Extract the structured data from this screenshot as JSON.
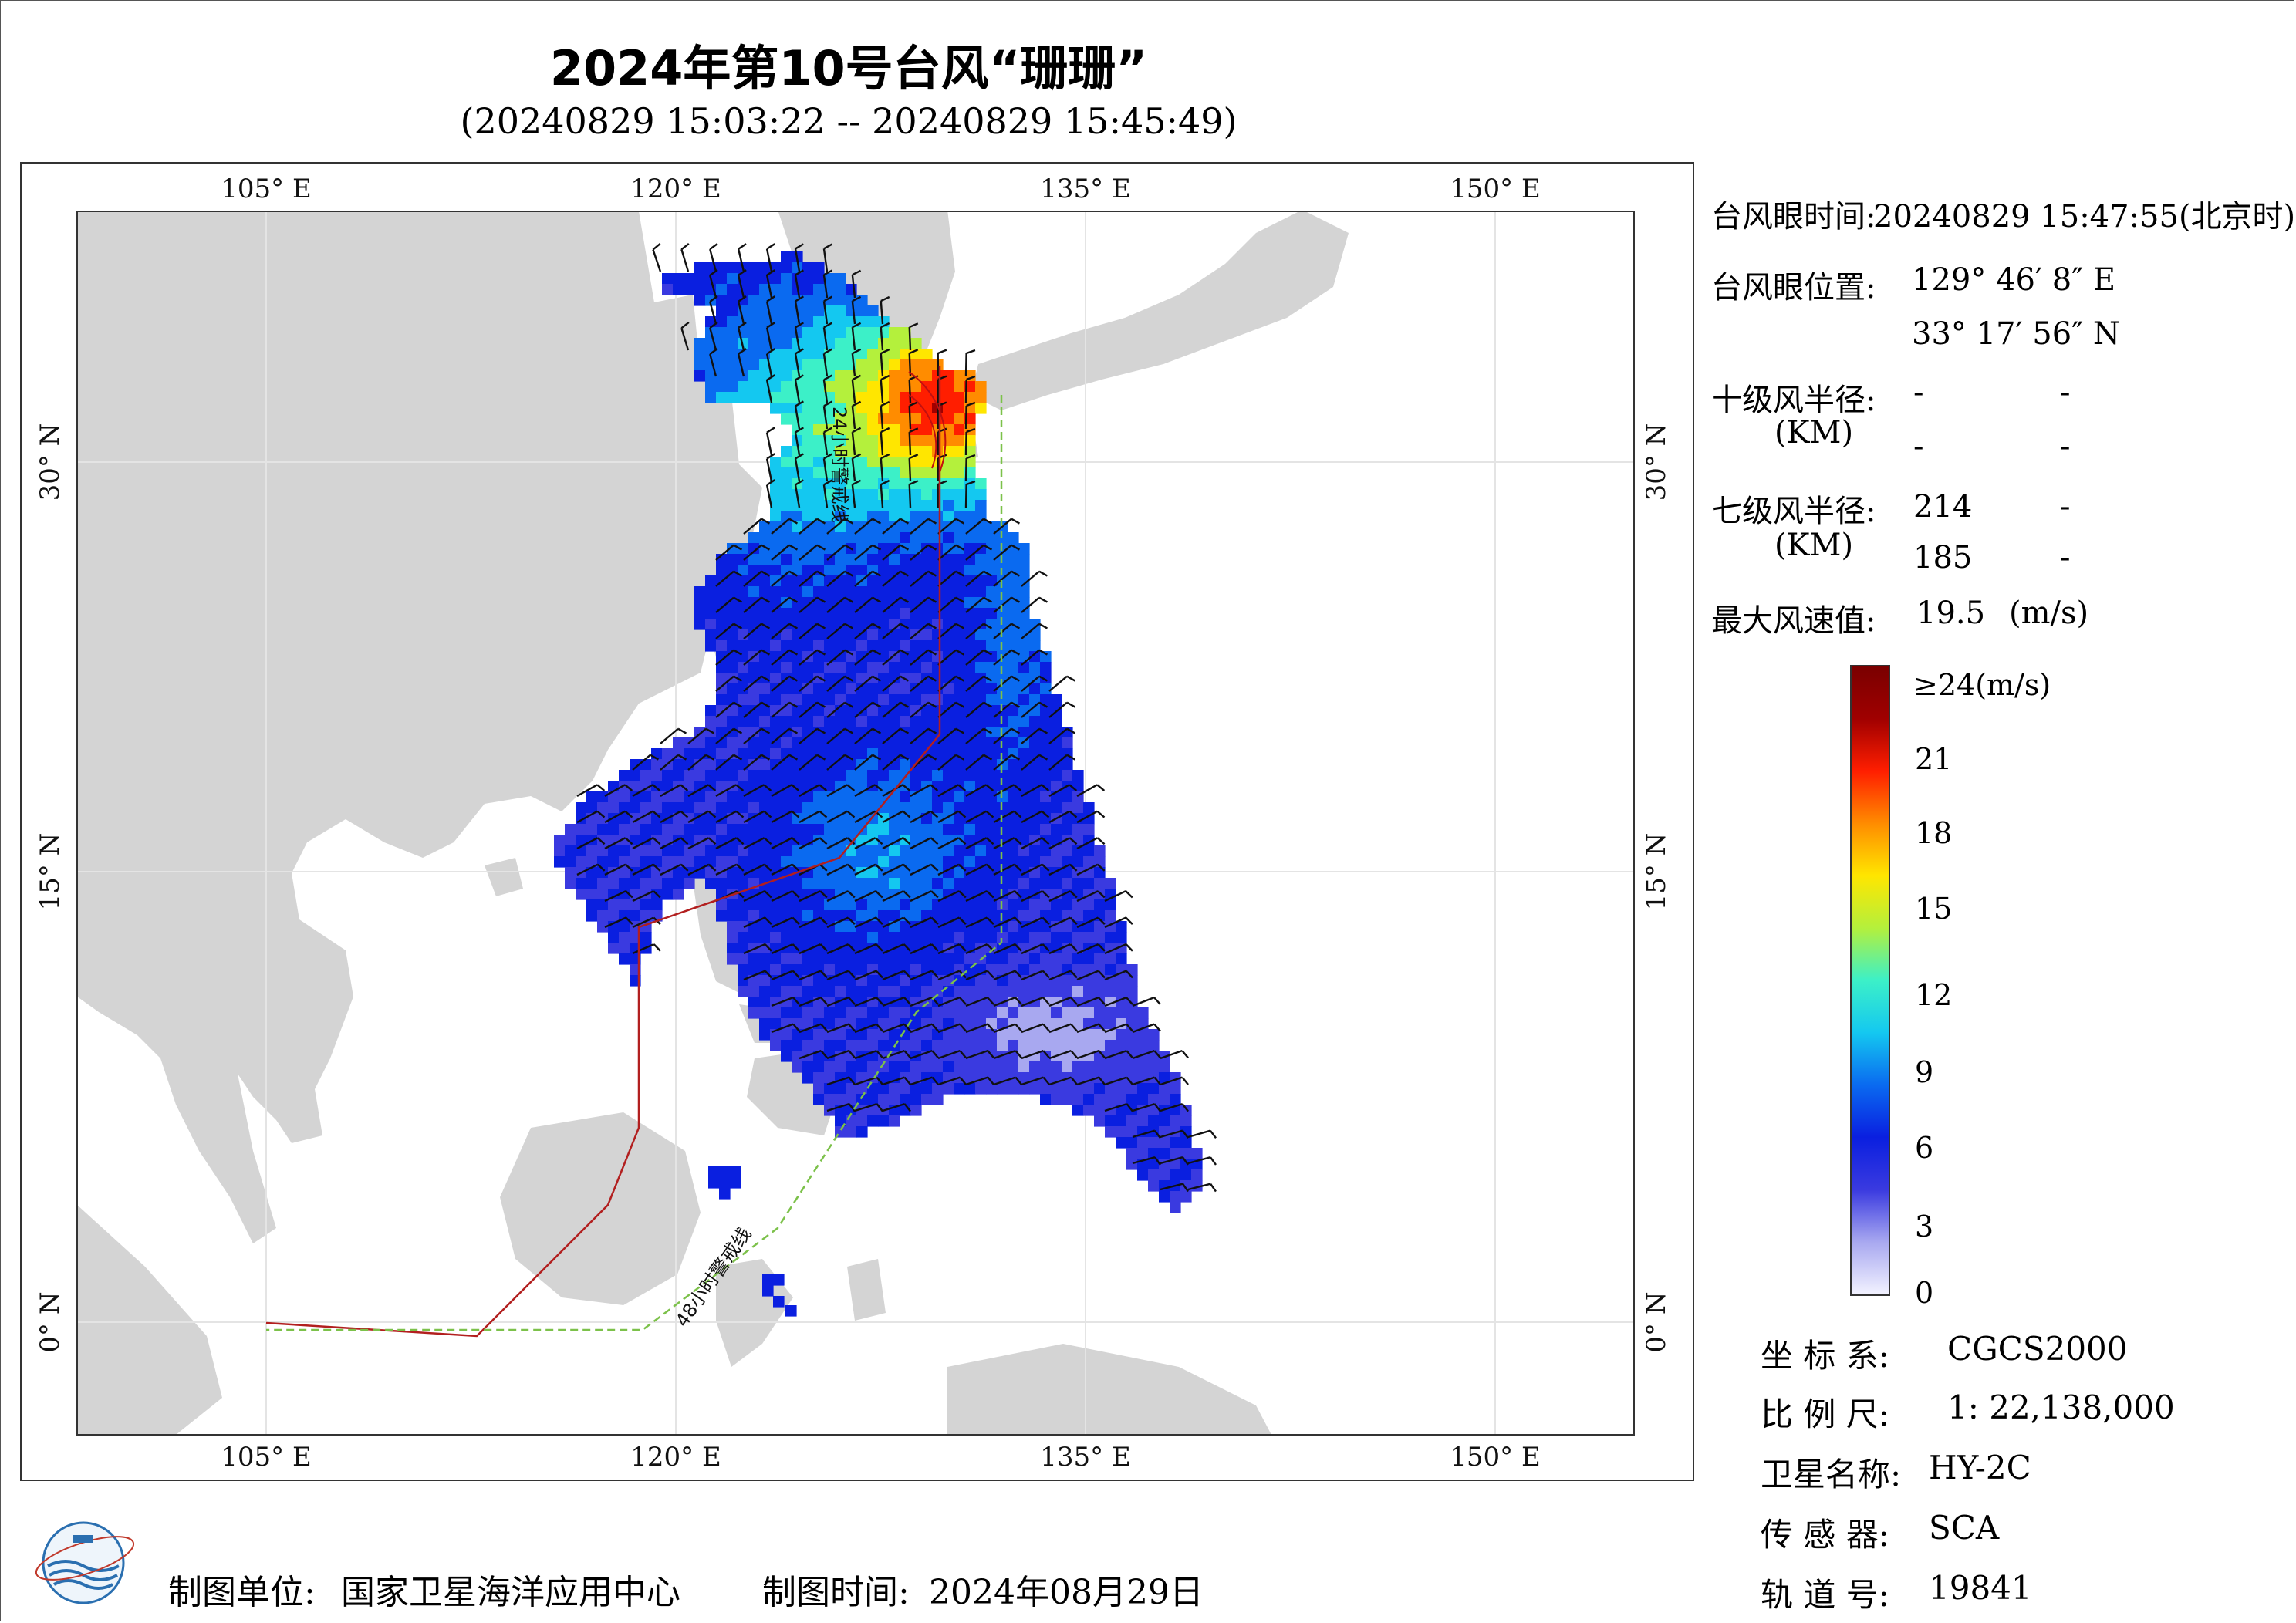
{
  "title": "2024年第10号台风“珊珊”",
  "subtitle": "(20240829 15:03:22 -- 20240829 15:45:49)",
  "map": {
    "lon_ticks": [
      "105° E",
      "120° E",
      "135° E",
      "150° E"
    ],
    "lat_ticks": [
      "0° N",
      "15° N",
      "30° N"
    ],
    "line_labels": {
      "line24": "24小时警戒线",
      "line48": "48小时警戒线"
    },
    "colors": {
      "land": "#d4d4d4",
      "sea": "#ffffff",
      "line24": "#b21f1f",
      "line48": "#7cc14a",
      "barb": "#111111"
    }
  },
  "info": {
    "eye_time_label": "台风眼时间:",
    "eye_time_value": "20240829 15:47:55(北京时)",
    "eye_pos_label": "台风眼位置:",
    "eye_lon": "129° 46′ 8″ E",
    "eye_lat": "33° 17′ 56″ N",
    "r10_label": "十级风半径:",
    "r10_unit": "(KM)",
    "r10_v1": "-",
    "r10_v2": "-",
    "r10_v3": "-",
    "r10_v4": "-",
    "r7_label": "七级风半径:",
    "r7_unit": "(KM)",
    "r7_v1": "214",
    "r7_v2": "-",
    "r7_v3": "185",
    "r7_v4": "-",
    "max_label": "最大风速值:",
    "max_value": "19.5",
    "max_unit": "(m/s)"
  },
  "colorbar": {
    "labels": [
      "≥24(m/s)",
      "21",
      "18",
      "15",
      "12",
      "9",
      "6",
      "3",
      "0"
    ],
    "stops": [
      "#f2f2ff",
      "#a8a8f0",
      "#3a3ae0",
      "#0a1fe0",
      "#0a6af0",
      "#14c8f0",
      "#3cf0c8",
      "#b4f03c",
      "#ffe600",
      "#ff8c00",
      "#ff1e00",
      "#a00000",
      "#7a0000"
    ]
  },
  "meta": {
    "crs_label": "坐 标 系:",
    "crs_value": "CGCS2000",
    "scale_label": "比 例 尺:",
    "scale_value": "1: 22,138,000",
    "sat_label": "卫星名称:",
    "sat_value": "HY-2C",
    "sensor_label": "传 感 器:",
    "sensor_value": "SCA",
    "orbit_label": "轨 道 号:",
    "orbit_value": "19841"
  },
  "footer": {
    "unit_label": "制图单位:",
    "unit_value": "国家卫星海洋应用中心",
    "time_label": "制图时间:",
    "time_value": "2024年08月29日"
  }
}
